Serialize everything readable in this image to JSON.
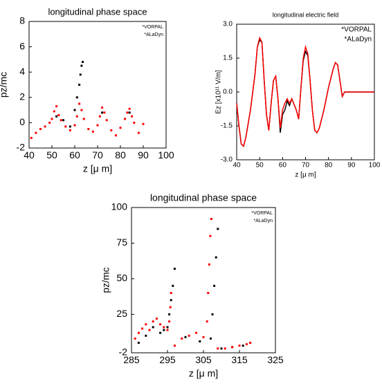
{
  "chart_data": [
    {
      "type": "scatter",
      "title": "longitudinal phase space",
      "x_label": "z  [μ m]",
      "y_label": "pz/mc",
      "xlim": [
        40,
        100
      ],
      "xticks": [
        40,
        50,
        60,
        70,
        80,
        90,
        100
      ],
      "ylim": [
        -2,
        8
      ],
      "yticks": [
        -2,
        0,
        2,
        4,
        6,
        8
      ],
      "legend": "upper right",
      "series": [
        {
          "name": "*VORPAL",
          "color": "#000000",
          "x": [
            52,
            55,
            58,
            60,
            61,
            62,
            62.5,
            63,
            63.5,
            72,
            84
          ],
          "y": [
            0.5,
            0.2,
            -0.3,
            1,
            2,
            3,
            3.8,
            4.5,
            4.8,
            0.8,
            0.8
          ]
        },
        {
          "name": "*ALaDyn",
          "color": "#ff0000",
          "x": [
            41,
            43,
            45,
            47,
            49,
            50,
            51,
            52,
            53,
            54,
            56,
            58,
            60,
            61,
            62,
            63,
            64,
            66,
            68,
            70,
            71,
            72,
            73,
            74,
            76,
            78,
            80,
            82,
            83,
            84,
            85,
            86,
            88,
            90
          ],
          "y": [
            -1.2,
            -0.8,
            -0.5,
            -0.3,
            0,
            0.3,
            0.9,
            1.3,
            0.6,
            0.2,
            -0.3,
            -0.6,
            -0.2,
            0.5,
            1.5,
            1.0,
            0.3,
            -0.5,
            -0.7,
            -0.2,
            0.5,
            1.2,
            0.8,
            0.2,
            -0.6,
            -1.0,
            -0.4,
            0.3,
            0.8,
            1.1,
            0.5,
            0,
            -0.8,
            -0.1
          ]
        }
      ]
    },
    {
      "type": "line",
      "title": "longitudinal electric field",
      "x_label": "z  [μ m]",
      "y_label": "Ez [x10¹¹ V/m]",
      "xlim": [
        40,
        100
      ],
      "xticks": [
        40,
        50,
        60,
        70,
        80,
        90,
        100
      ],
      "ylim": [
        -3,
        3
      ],
      "yticks": [
        {
          "value": -3,
          "label": "-3.0"
        },
        -1.5,
        {
          "value": 0,
          "label": "0.0"
        },
        1.5,
        {
          "value": 3,
          "label": "3.0"
        }
      ],
      "legend": "upper right",
      "series": [
        {
          "name": "*VORPAL",
          "color": "#000000",
          "x": [
            40,
            41,
            42,
            43,
            44,
            46,
            48,
            49,
            50,
            51,
            52,
            53,
            54,
            55,
            56,
            57,
            58,
            59,
            60,
            61,
            62,
            63,
            64,
            66,
            67,
            68,
            69,
            70,
            71,
            72,
            73,
            74,
            75,
            76,
            78,
            80,
            82,
            83,
            84,
            85,
            86,
            87,
            90,
            100
          ],
          "y": [
            -0.5,
            -1.5,
            -2.3,
            -2.4,
            -2.0,
            -0.8,
            0.8,
            2.0,
            2.3,
            2.2,
            0.5,
            -1.0,
            -1.7,
            -0.5,
            0.5,
            0.7,
            -0.3,
            -1.8,
            -1.0,
            -0.8,
            -0.4,
            -0.6,
            -0.3,
            -0.8,
            -1.2,
            0.2,
            1.4,
            1.8,
            1.6,
            0.5,
            -0.8,
            -1.7,
            -1.8,
            -1.6,
            -0.8,
            0.2,
            1.0,
            1.3,
            1.2,
            0.5,
            -0.2,
            0,
            0,
            0
          ]
        },
        {
          "name": "*ALaDyn",
          "color": "#ff0000",
          "x": [
            40,
            41,
            42,
            43,
            44,
            46,
            48,
            49,
            50,
            51,
            52,
            53,
            54,
            55,
            56,
            57,
            58,
            59,
            60,
            61,
            62,
            63,
            64,
            66,
            67,
            68,
            69,
            70,
            71,
            72,
            73,
            74,
            75,
            76,
            78,
            80,
            82,
            83,
            84,
            85,
            86,
            87,
            90,
            100
          ],
          "y": [
            -0.5,
            -1.5,
            -2.3,
            -2.4,
            -2.0,
            -0.8,
            0.8,
            2.0,
            2.4,
            2.2,
            0.5,
            -1.0,
            -1.7,
            -0.5,
            0.5,
            0.7,
            -0.3,
            -1.6,
            -0.8,
            -0.5,
            -0.3,
            -0.5,
            -0.3,
            -0.8,
            -1.2,
            0.2,
            1.5,
            2.0,
            1.7,
            0.5,
            -0.8,
            -1.7,
            -1.8,
            -1.6,
            -0.8,
            0.2,
            1.0,
            1.3,
            1.2,
            0.5,
            -0.2,
            0,
            0,
            0
          ]
        }
      ]
    },
    {
      "type": "scatter",
      "title": "longitudinal phase space",
      "x_label": "z  [μ m]",
      "y_label": "pz/mc",
      "xlim": [
        285,
        325
      ],
      "xticks": [
        285,
        295,
        305,
        315,
        325
      ],
      "ylim": [
        -2,
        100
      ],
      "yticks": [
        -2,
        25,
        50,
        75,
        100
      ],
      "legend": "upper right",
      "series": [
        {
          "name": "*VORPAL",
          "color": "#000000",
          "x": [
            287,
            289,
            291,
            293,
            294,
            295,
            295.5,
            296,
            296.5,
            297,
            300,
            304,
            307,
            307.5,
            308,
            308.5,
            309,
            310,
            313,
            316,
            318
          ],
          "y": [
            5,
            10,
            16,
            12,
            14,
            16,
            25,
            35,
            45,
            57,
            9,
            6,
            8,
            25,
            45,
            65,
            85,
            1,
            2,
            3,
            5
          ]
        },
        {
          "name": "*ALaDyn",
          "color": "#ff0000",
          "x": [
            286,
            287,
            288,
            289,
            290,
            291,
            292,
            293,
            294,
            295,
            295.5,
            295.8,
            296,
            297,
            299,
            301,
            303,
            305,
            306,
            306.3,
            306.6,
            306.9,
            307.2,
            309,
            311,
            313,
            315,
            317,
            318
          ],
          "y": [
            8,
            12,
            15,
            18,
            14,
            20,
            22,
            18,
            16,
            14,
            20,
            30,
            40,
            3,
            8,
            10,
            12,
            9,
            20,
            40,
            60,
            80,
            92,
            1,
            1,
            2,
            3,
            4,
            5
          ]
        }
      ]
    }
  ]
}
